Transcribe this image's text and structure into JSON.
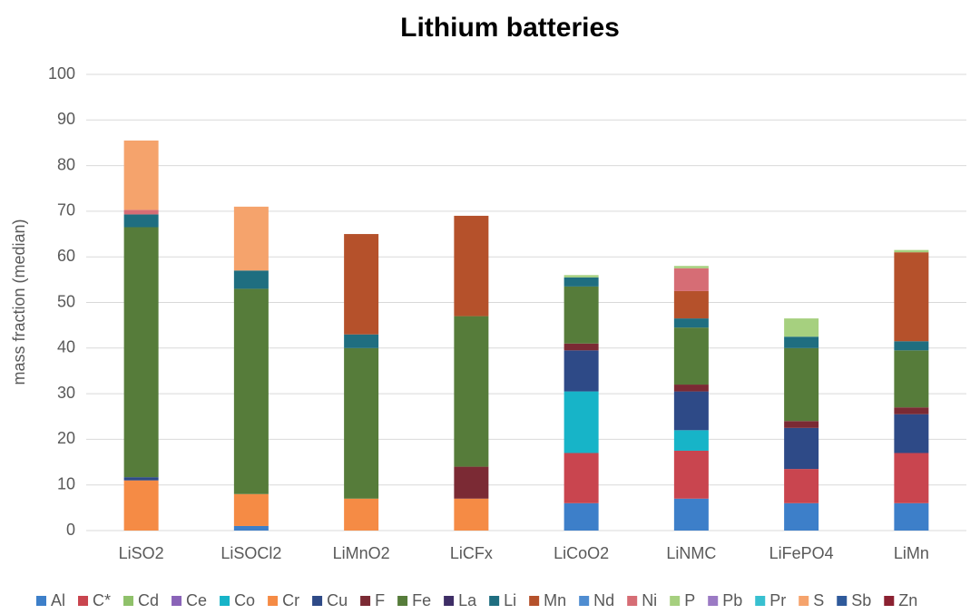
{
  "chart_data": {
    "type": "stacked_bar",
    "title": "Lithium batteries",
    "y_label": "mass fraction  (median)",
    "categories": [
      "LiSO2",
      "LiSOCl2",
      "LiMnO2",
      "LiCFx",
      "LiCoO2",
      "LiNMC",
      "LiFePO4",
      "LiMn"
    ],
    "ylim": [
      0,
      100
    ],
    "yticks": [
      0,
      10,
      20,
      30,
      40,
      50,
      60,
      70,
      80,
      90,
      100
    ],
    "grid": true,
    "legend": "bottom",
    "series": [
      {
        "name": "Al",
        "color": "#3d7fc9",
        "values": [
          0,
          1,
          0,
          0,
          6,
          7,
          6,
          6
        ]
      },
      {
        "name": "C*",
        "color": "#c9454f",
        "values": [
          0,
          0,
          0,
          0,
          11,
          10.5,
          7.5,
          11
        ]
      },
      {
        "name": "Cd",
        "color": "#8fc16a",
        "values": [
          0,
          0,
          0,
          0,
          0,
          0,
          0,
          0
        ]
      },
      {
        "name": "Ce",
        "color": "#8a63b8",
        "values": [
          0,
          0,
          0,
          0,
          0,
          0,
          0,
          0
        ]
      },
      {
        "name": "Co",
        "color": "#17b4c8",
        "values": [
          0,
          0,
          0,
          0,
          13.5,
          4.5,
          0,
          0
        ]
      },
      {
        "name": "Cr",
        "color": "#f58b45",
        "values": [
          11,
          7,
          7,
          7,
          0,
          0,
          0,
          0
        ]
      },
      {
        "name": "Cu",
        "color": "#2e4a87",
        "values": [
          0.7,
          0,
          0,
          0,
          9,
          8.5,
          9,
          8.5
        ]
      },
      {
        "name": "F",
        "color": "#7b2a34",
        "values": [
          0,
          0,
          0,
          7,
          1.5,
          1.5,
          1.5,
          1.5
        ]
      },
      {
        "name": "Fe",
        "color": "#567c3a",
        "values": [
          54.8,
          45,
          33,
          33,
          12.5,
          12.5,
          16,
          12.5
        ]
      },
      {
        "name": "La",
        "color": "#3e2e66",
        "values": [
          0,
          0,
          0,
          0,
          0,
          0,
          0,
          0
        ]
      },
      {
        "name": "Li",
        "color": "#1f6e80",
        "values": [
          2.8,
          4,
          3,
          0,
          2,
          2,
          2.5,
          2
        ]
      },
      {
        "name": "Mn",
        "color": "#b5512b",
        "values": [
          0,
          0,
          22,
          22,
          0,
          6,
          0,
          19.5
        ]
      },
      {
        "name": "Nd",
        "color": "#4f8dd1",
        "values": [
          0,
          0,
          0,
          0,
          0,
          0,
          0,
          0
        ]
      },
      {
        "name": "Ni",
        "color": "#d66d75",
        "values": [
          1,
          0,
          0,
          0,
          0,
          5,
          0,
          0
        ]
      },
      {
        "name": "P",
        "color": "#a6d07f",
        "values": [
          0,
          0,
          0,
          0,
          0.5,
          0.5,
          4,
          0.5
        ]
      },
      {
        "name": "Pb",
        "color": "#9b7ac4",
        "values": [
          0,
          0,
          0,
          0,
          0,
          0,
          0,
          0
        ]
      },
      {
        "name": "Pr",
        "color": "#38c0d0",
        "values": [
          0,
          0,
          0,
          0,
          0,
          0,
          0,
          0
        ]
      },
      {
        "name": "S",
        "color": "#f5a36c",
        "values": [
          15.2,
          14,
          0,
          0,
          0,
          0,
          0,
          0
        ]
      },
      {
        "name": "Sb",
        "color": "#2f5a9b",
        "values": [
          0,
          0,
          0,
          0,
          0,
          0,
          0,
          0
        ]
      },
      {
        "name": "Zn",
        "color": "#8b2131",
        "values": [
          0,
          0,
          0,
          0,
          0,
          0,
          0,
          0
        ]
      }
    ]
  }
}
